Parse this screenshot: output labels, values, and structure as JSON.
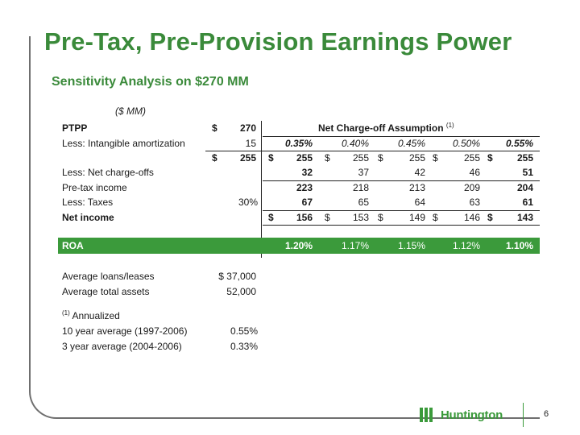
{
  "title": "Pre-Tax, Pre-Provision Earnings Power",
  "subtitle": "Sensitivity Analysis on $270 MM",
  "units": "($ MM)",
  "header": {
    "label": "PTPP",
    "dollar": "$",
    "value": "270",
    "assumption_title": "Net Charge-off Assumption",
    "assumption_note": "(1)"
  },
  "rows": {
    "amort": {
      "label": "Less: Intangible amortization",
      "base": "15",
      "rates": [
        "0.35%",
        "0.40%",
        "0.45%",
        "0.50%",
        "0.55%"
      ]
    },
    "subtotal": {
      "dollar": "$",
      "base": "255",
      "dollars": [
        "$",
        "$",
        "$",
        "$",
        "$"
      ],
      "values": [
        "255",
        "255",
        "255",
        "255",
        "255"
      ]
    },
    "ncos": {
      "label": "Less: Net charge-offs",
      "values": [
        "32",
        "37",
        "42",
        "46",
        "51"
      ]
    },
    "pretax": {
      "label": "Pre-tax income",
      "values": [
        "223",
        "218",
        "213",
        "209",
        "204"
      ]
    },
    "taxes": {
      "label": "Less: Taxes",
      "rate": "30%",
      "values": [
        "67",
        "65",
        "64",
        "63",
        "61"
      ]
    },
    "net": {
      "label": "Net income",
      "dollars": [
        "$",
        "$",
        "$",
        "$",
        "$"
      ],
      "values": [
        "156",
        "153",
        "149",
        "146",
        "143"
      ]
    },
    "roa": {
      "label": "ROA",
      "values": [
        "1.20%",
        "1.17%",
        "1.15%",
        "1.12%",
        "1.10%"
      ]
    }
  },
  "balances": {
    "loans_label": "Average loans/leases",
    "loans_value": "$ 37,000",
    "assets_label": "Average total assets",
    "assets_value": "52,000"
  },
  "footnote": {
    "marker": "(1)",
    "text": "Annualized",
    "avg10_label": "10 year average (1997-2006)",
    "avg10_value": "0.55%",
    "avg3_label": "3 year average (2004-2006)",
    "avg3_value": "0.33%"
  },
  "brand": {
    "name": "Huntington",
    "color": "#3b9a3b"
  },
  "page_number": "6"
}
